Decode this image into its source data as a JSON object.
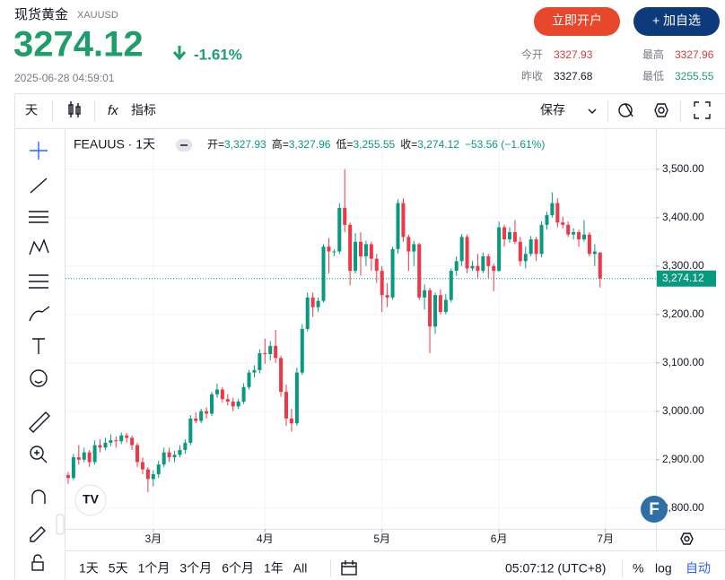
{
  "header": {
    "name": "现货黄金",
    "symbol": "XAUUSD",
    "price": "3274.12",
    "change": "-1.61%",
    "time": "2025-06-28 04:59:01",
    "open_account": "立即开户",
    "watchlist": "+ 加自选"
  },
  "stats": [
    {
      "label": "今开",
      "value": "3327.93"
    },
    {
      "label": "最高",
      "value": "3327.96"
    },
    {
      "label": "昨收",
      "value": "3327.68"
    },
    {
      "label": "最低",
      "value": "3255.55"
    }
  ],
  "toolbar": {
    "interval": "天",
    "indicators": "指标",
    "save": "保存"
  },
  "timeframes": [
    "1天",
    "5天",
    "1个月",
    "3个月",
    "6个月",
    "1年",
    "All"
  ],
  "footer": {
    "clock": "05:07:12 (UTC+8)",
    "percent": "%",
    "log": "log",
    "auto": "自动"
  },
  "chart_data": {
    "type": "candlestick",
    "title": "FEAUUS · 1天",
    "legend": [
      {
        "key": "开=",
        "value": "3,327.93"
      },
      {
        "key": "高=",
        "value": "3,327.96"
      },
      {
        "key": "低=",
        "value": "3,255.55"
      },
      {
        "key": "收=",
        "value": "3,274.12"
      }
    ],
    "change_label": "−53.56 (−1.61%)",
    "up_color": "#089981",
    "down_color": "#f23645",
    "grid": true,
    "xlim": [
      0.5,
      111.5
    ],
    "xticks": [
      {
        "value": 17,
        "label": "3月"
      },
      {
        "value": 38,
        "label": "4月"
      },
      {
        "value": 60,
        "label": "5月"
      },
      {
        "value": 82,
        "label": "6月"
      },
      {
        "value": 102,
        "label": "7月"
      }
    ],
    "ylim": [
      2757,
      3581
    ],
    "yticks": [
      {
        "value": 2800,
        "label": "2,800.00"
      },
      {
        "value": 2900,
        "label": "2,900.00"
      },
      {
        "value": 3000,
        "label": "3,000.00"
      },
      {
        "value": 3100,
        "label": "3,100.00"
      },
      {
        "value": 3200,
        "label": "3,200.00"
      },
      {
        "value": 3300,
        "label": "3,300.00"
      },
      {
        "value": 3400,
        "label": "3,400.00"
      },
      {
        "value": 3500,
        "label": "3,500.00"
      }
    ],
    "last_price": {
      "value": 3274.12,
      "label": "3,274.12"
    },
    "ohlc": [
      [
        2860,
        2880,
        2852,
        2868
      ],
      [
        2868,
        2875,
        2850,
        2862
      ],
      [
        2862,
        2912,
        2858,
        2905
      ],
      [
        2905,
        2930,
        2890,
        2900
      ],
      [
        2900,
        2925,
        2895,
        2915
      ],
      [
        2915,
        2920,
        2885,
        2895
      ],
      [
        2895,
        2940,
        2890,
        2930
      ],
      [
        2930,
        2942,
        2915,
        2925
      ],
      [
        2925,
        2945,
        2920,
        2935
      ],
      [
        2935,
        2952,
        2928,
        2940
      ],
      [
        2940,
        2948,
        2925,
        2938
      ],
      [
        2938,
        2956,
        2932,
        2950
      ],
      [
        2950,
        2955,
        2935,
        2945
      ],
      [
        2945,
        2950,
        2920,
        2930
      ],
      [
        2930,
        2935,
        2885,
        2895
      ],
      [
        2895,
        2905,
        2870,
        2880
      ],
      [
        2880,
        2885,
        2833,
        2860
      ],
      [
        2860,
        2878,
        2845,
        2870
      ],
      [
        2870,
        2898,
        2862,
        2890
      ],
      [
        2890,
        2925,
        2885,
        2915
      ],
      [
        2915,
        2925,
        2895,
        2905
      ],
      [
        2905,
        2918,
        2895,
        2910
      ],
      [
        2910,
        2930,
        2905,
        2920
      ],
      [
        2920,
        2942,
        2912,
        2935
      ],
      [
        2935,
        2992,
        2930,
        2985
      ],
      [
        2985,
        2998,
        2975,
        2980
      ],
      [
        2980,
        3005,
        2975,
        3000
      ],
      [
        3000,
        3008,
        2985,
        2995
      ],
      [
        2995,
        3040,
        2990,
        3035
      ],
      [
        3035,
        3057,
        3028,
        3045
      ],
      [
        3045,
        3050,
        3018,
        3025
      ],
      [
        3025,
        3035,
        3012,
        3020
      ],
      [
        3020,
        3028,
        3000,
        3010
      ],
      [
        3010,
        3026,
        3005,
        3020
      ],
      [
        3020,
        3058,
        3015,
        3050
      ],
      [
        3050,
        3085,
        3045,
        3080
      ],
      [
        3080,
        3095,
        3070,
        3085
      ],
      [
        3085,
        3128,
        3078,
        3120
      ],
      [
        3120,
        3150,
        3098,
        3118
      ],
      [
        3118,
        3145,
        3105,
        3135
      ],
      [
        3135,
        3168,
        3100,
        3110
      ],
      [
        3110,
        3115,
        3030,
        3040
      ],
      [
        3040,
        3055,
        2970,
        2985
      ],
      [
        2985,
        3005,
        2958,
        2975
      ],
      [
        2975,
        3090,
        2970,
        3080
      ],
      [
        3080,
        3180,
        3075,
        3170
      ],
      [
        3170,
        3245,
        3165,
        3235
      ],
      [
        3235,
        3245,
        3195,
        3215
      ],
      [
        3215,
        3235,
        3205,
        3228
      ],
      [
        3228,
        3345,
        3225,
        3340
      ],
      [
        3340,
        3358,
        3285,
        3330
      ],
      [
        3330,
        3335,
        3320,
        3330
      ],
      [
        3330,
        3430,
        3325,
        3420
      ],
      [
        3420,
        3500,
        3370,
        3385
      ],
      [
        3385,
        3390,
        3260,
        3290
      ],
      [
        3290,
        3368,
        3285,
        3350
      ],
      [
        3350,
        3370,
        3280,
        3320
      ],
      [
        3320,
        3352,
        3300,
        3345
      ],
      [
        3345,
        3350,
        3290,
        3315
      ],
      [
        3315,
        3325,
        3265,
        3290
      ],
      [
        3290,
        3300,
        3205,
        3240
      ],
      [
        3240,
        3265,
        3215,
        3235
      ],
      [
        3235,
        3340,
        3230,
        3335
      ],
      [
        3335,
        3438,
        3325,
        3430
      ],
      [
        3430,
        3440,
        3350,
        3360
      ],
      [
        3360,
        3365,
        3290,
        3330
      ],
      [
        3330,
        3352,
        3300,
        3345
      ],
      [
        3345,
        3348,
        3230,
        3235
      ],
      [
        3235,
        3262,
        3210,
        3250
      ],
      [
        3250,
        3255,
        3120,
        3175
      ],
      [
        3175,
        3245,
        3160,
        3240
      ],
      [
        3240,
        3252,
        3200,
        3205
      ],
      [
        3205,
        3242,
        3200,
        3230
      ],
      [
        3230,
        3295,
        3225,
        3290
      ],
      [
        3290,
        3320,
        3280,
        3310
      ],
      [
        3310,
        3366,
        3300,
        3360
      ],
      [
        3360,
        3365,
        3285,
        3295
      ],
      [
        3295,
        3310,
        3290,
        3300
      ],
      [
        3300,
        3325,
        3275,
        3290
      ],
      [
        3290,
        3328,
        3285,
        3320
      ],
      [
        3320,
        3325,
        3275,
        3300
      ],
      [
        3300,
        3305,
        3248,
        3290
      ],
      [
        3290,
        3392,
        3288,
        3380
      ],
      [
        3380,
        3385,
        3340,
        3355
      ],
      [
        3355,
        3380,
        3348,
        3370
      ],
      [
        3370,
        3395,
        3345,
        3350
      ],
      [
        3350,
        3360,
        3300,
        3310
      ],
      [
        3310,
        3340,
        3295,
        3325
      ],
      [
        3325,
        3362,
        3320,
        3355
      ],
      [
        3355,
        3360,
        3310,
        3325
      ],
      [
        3325,
        3392,
        3318,
        3385
      ],
      [
        3385,
        3412,
        3375,
        3405
      ],
      [
        3405,
        3452,
        3400,
        3430
      ],
      [
        3430,
        3440,
        3380,
        3390
      ],
      [
        3390,
        3402,
        3378,
        3385
      ],
      [
        3385,
        3392,
        3360,
        3365
      ],
      [
        3365,
        3378,
        3355,
        3370
      ],
      [
        3370,
        3375,
        3340,
        3355
      ],
      [
        3355,
        3395,
        3350,
        3365
      ],
      [
        3365,
        3370,
        3320,
        3325
      ],
      [
        3325,
        3345,
        3300,
        3330
      ],
      [
        3327.93,
        3327.96,
        3255.55,
        3274.12
      ]
    ]
  }
}
